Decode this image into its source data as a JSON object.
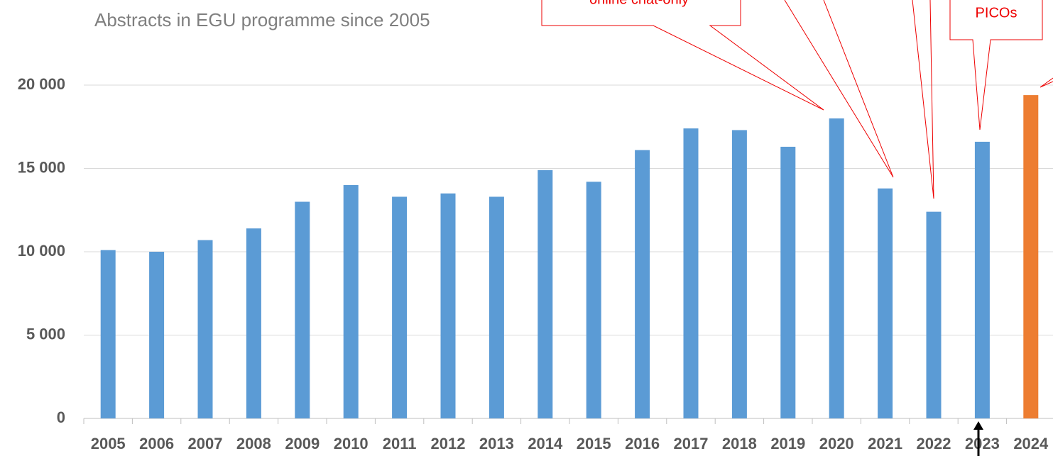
{
  "chart_data": {
    "type": "bar",
    "title": "Abstracts in EGU programme since 2005",
    "categories": [
      "2005",
      "2006",
      "2007",
      "2008",
      "2009",
      "2010",
      "2011",
      "2012",
      "2013",
      "2014",
      "2015",
      "2016",
      "2017",
      "2018",
      "2019",
      "2020",
      "2021",
      "2022",
      "2023",
      "2024"
    ],
    "values": [
      10100,
      10000,
      10700,
      11400,
      13000,
      14000,
      13300,
      13500,
      13300,
      14900,
      14200,
      16100,
      17400,
      17300,
      16300,
      18000,
      13800,
      12400,
      16600,
      19400
    ],
    "colors": [
      "#5b9bd5",
      "#5b9bd5",
      "#5b9bd5",
      "#5b9bd5",
      "#5b9bd5",
      "#5b9bd5",
      "#5b9bd5",
      "#5b9bd5",
      "#5b9bd5",
      "#5b9bd5",
      "#5b9bd5",
      "#5b9bd5",
      "#5b9bd5",
      "#5b9bd5",
      "#5b9bd5",
      "#5b9bd5",
      "#5b9bd5",
      "#5b9bd5",
      "#5b9bd5",
      "#ed7d31"
    ],
    "ylim": [
      0,
      20000
    ],
    "yticks": [
      0,
      {
        "value": 5000,
        "label": "5 000"
      },
      {
        "value": 10000,
        "label": "10 000"
      },
      {
        "value": 15000,
        "label": "15 000"
      },
      {
        "value": 20000,
        "label": "20 000"
      }
    ],
    "grid": true,
    "annotations": [
      "online chat-only",
      "PICOs"
    ]
  }
}
